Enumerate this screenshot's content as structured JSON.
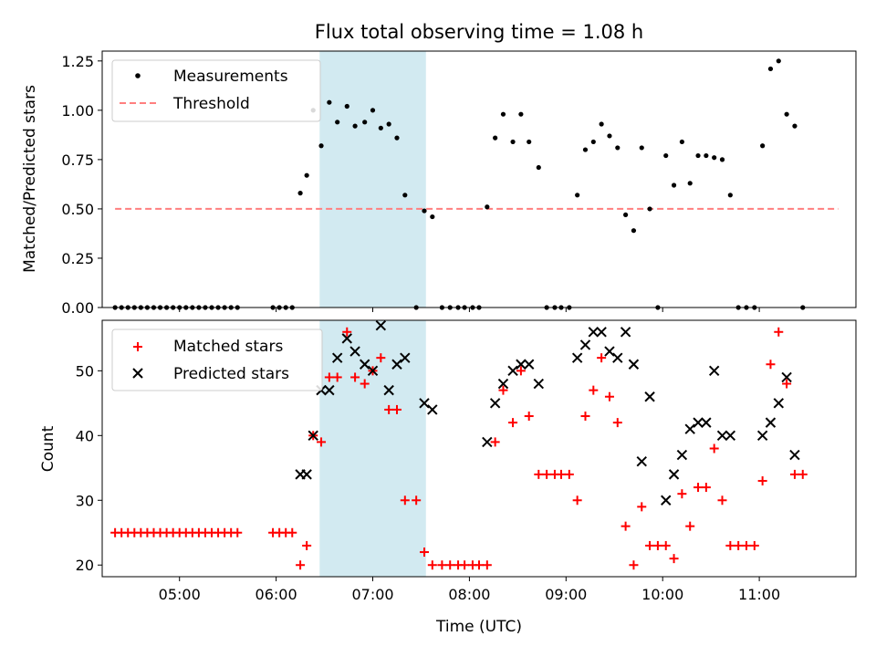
{
  "chart_data": {
    "type": "scatter",
    "title": "Flux total observing time = 1.08 h",
    "xlabel": "Time (UTC)",
    "xlim": [
      "04:12",
      "12:00"
    ],
    "x_ticks": [
      "05:00",
      "06:00",
      "07:00",
      "08:00",
      "09:00",
      "10:00",
      "11:00"
    ],
    "shaded_span": {
      "start": "06:27",
      "end": "07:33",
      "color": "#add8e6"
    },
    "panels": [
      {
        "id": "top",
        "ylabel": "Matched/Predicted stars",
        "ylim": [
          0,
          1.3
        ],
        "y_ticks": [
          "0.00",
          "0.25",
          "0.50",
          "0.75",
          "1.00",
          "1.25"
        ],
        "legend_position": "upper left",
        "threshold": {
          "name": "Threshold",
          "value": 0.5,
          "x_start": "04:20",
          "x_end": "11:49",
          "color": "#ff7f7f",
          "style": "dashed"
        },
        "series": [
          {
            "name": "Measurements",
            "marker": "dot",
            "color": "#000000",
            "points": [
              [
                "04:20",
                0
              ],
              [
                "04:24",
                0
              ],
              [
                "04:28",
                0
              ],
              [
                "04:32",
                0
              ],
              [
                "04:36",
                0
              ],
              [
                "04:40",
                0
              ],
              [
                "04:44",
                0
              ],
              [
                "04:48",
                0
              ],
              [
                "04:52",
                0
              ],
              [
                "04:56",
                0
              ],
              [
                "05:00",
                0
              ],
              [
                "05:04",
                0
              ],
              [
                "05:08",
                0
              ],
              [
                "05:12",
                0
              ],
              [
                "05:16",
                0
              ],
              [
                "05:20",
                0
              ],
              [
                "05:24",
                0
              ],
              [
                "05:28",
                0
              ],
              [
                "05:32",
                0
              ],
              [
                "05:36",
                0
              ],
              [
                "05:58",
                0
              ],
              [
                "06:02",
                0
              ],
              [
                "06:06",
                0
              ],
              [
                "06:10",
                0
              ],
              [
                "06:15",
                0.58
              ],
              [
                "06:19",
                0.67
              ],
              [
                "06:23",
                1.0
              ],
              [
                "06:28",
                0.82
              ],
              [
                "06:33",
                1.04
              ],
              [
                "06:38",
                0.94
              ],
              [
                "06:44",
                1.02
              ],
              [
                "06:49",
                0.92
              ],
              [
                "06:55",
                0.94
              ],
              [
                "07:00",
                1.0
              ],
              [
                "07:05",
                0.91
              ],
              [
                "07:10",
                0.93
              ],
              [
                "07:15",
                0.86
              ],
              [
                "07:20",
                0.57
              ],
              [
                "07:27",
                0.0
              ],
              [
                "07:32",
                0.49
              ],
              [
                "07:37",
                0.46
              ],
              [
                "07:43",
                0
              ],
              [
                "07:48",
                0
              ],
              [
                "07:53",
                0
              ],
              [
                "07:57",
                0
              ],
              [
                "08:02",
                0
              ],
              [
                "08:06",
                0
              ],
              [
                "08:11",
                0.51
              ],
              [
                "08:16",
                0.86
              ],
              [
                "08:21",
                0.98
              ],
              [
                "08:27",
                0.84
              ],
              [
                "08:32",
                0.98
              ],
              [
                "08:37",
                0.84
              ],
              [
                "08:43",
                0.71
              ],
              [
                "08:48",
                0
              ],
              [
                "08:53",
                0
              ],
              [
                "08:57",
                0
              ],
              [
                "09:02",
                0
              ],
              [
                "09:07",
                0.57
              ],
              [
                "09:12",
                0.8
              ],
              [
                "09:17",
                0.84
              ],
              [
                "09:22",
                0.93
              ],
              [
                "09:27",
                0.87
              ],
              [
                "09:32",
                0.81
              ],
              [
                "09:37",
                0.47
              ],
              [
                "09:42",
                0.39
              ],
              [
                "09:47",
                0.81
              ],
              [
                "09:52",
                0.5
              ],
              [
                "09:57",
                0.0
              ],
              [
                "10:02",
                0.77
              ],
              [
                "10:07",
                0.62
              ],
              [
                "10:12",
                0.84
              ],
              [
                "10:17",
                0.63
              ],
              [
                "10:22",
                0.77
              ],
              [
                "10:27",
                0.77
              ],
              [
                "10:32",
                0.76
              ],
              [
                "10:37",
                0.75
              ],
              [
                "10:42",
                0.57
              ],
              [
                "10:47",
                0
              ],
              [
                "10:52",
                0
              ],
              [
                "10:57",
                0
              ],
              [
                "11:02",
                0.82
              ],
              [
                "11:07",
                1.21
              ],
              [
                "11:12",
                1.25
              ],
              [
                "11:17",
                0.98
              ],
              [
                "11:22",
                0.92
              ],
              [
                "11:27",
                0.0
              ]
            ]
          }
        ]
      },
      {
        "id": "bottom",
        "ylabel": "Count",
        "ylim": [
          18.2,
          57.8
        ],
        "y_ticks": [
          "20",
          "30",
          "40",
          "50"
        ],
        "legend_position": "upper left",
        "series": [
          {
            "name": "Matched stars",
            "marker": "plus",
            "color": "#ff0000",
            "points": [
              [
                "04:20",
                25
              ],
              [
                "04:24",
                25
              ],
              [
                "04:28",
                25
              ],
              [
                "04:32",
                25
              ],
              [
                "04:36",
                25
              ],
              [
                "04:40",
                25
              ],
              [
                "04:44",
                25
              ],
              [
                "04:48",
                25
              ],
              [
                "04:52",
                25
              ],
              [
                "04:56",
                25
              ],
              [
                "05:00",
                25
              ],
              [
                "05:04",
                25
              ],
              [
                "05:08",
                25
              ],
              [
                "05:12",
                25
              ],
              [
                "05:16",
                25
              ],
              [
                "05:20",
                25
              ],
              [
                "05:24",
                25
              ],
              [
                "05:28",
                25
              ],
              [
                "05:32",
                25
              ],
              [
                "05:36",
                25
              ],
              [
                "05:58",
                25
              ],
              [
                "06:02",
                25
              ],
              [
                "06:06",
                25
              ],
              [
                "06:10",
                25
              ],
              [
                "06:15",
                20
              ],
              [
                "06:19",
                23
              ],
              [
                "06:23",
                40
              ],
              [
                "06:28",
                39
              ],
              [
                "06:33",
                49
              ],
              [
                "06:38",
                49
              ],
              [
                "06:44",
                56
              ],
              [
                "06:49",
                49
              ],
              [
                "06:55",
                48
              ],
              [
                "07:00",
                50
              ],
              [
                "07:05",
                52
              ],
              [
                "07:10",
                44
              ],
              [
                "07:15",
                44
              ],
              [
                "07:20",
                30
              ],
              [
                "07:27",
                30
              ],
              [
                "07:32",
                22
              ],
              [
                "07:37",
                20
              ],
              [
                "07:43",
                20
              ],
              [
                "07:48",
                20
              ],
              [
                "07:53",
                20
              ],
              [
                "07:57",
                20
              ],
              [
                "08:02",
                20
              ],
              [
                "08:06",
                20
              ],
              [
                "08:11",
                20
              ],
              [
                "08:16",
                39
              ],
              [
                "08:21",
                47
              ],
              [
                "08:27",
                42
              ],
              [
                "08:32",
                50
              ],
              [
                "08:37",
                43
              ],
              [
                "08:43",
                34
              ],
              [
                "08:48",
                34
              ],
              [
                "08:53",
                34
              ],
              [
                "08:57",
                34
              ],
              [
                "09:02",
                34
              ],
              [
                "09:07",
                30
              ],
              [
                "09:12",
                43
              ],
              [
                "09:17",
                47
              ],
              [
                "09:22",
                52
              ],
              [
                "09:27",
                46
              ],
              [
                "09:32",
                42
              ],
              [
                "09:37",
                26
              ],
              [
                "09:42",
                20
              ],
              [
                "09:47",
                29
              ],
              [
                "09:52",
                23
              ],
              [
                "09:57",
                23
              ],
              [
                "10:02",
                23
              ],
              [
                "10:07",
                21
              ],
              [
                "10:12",
                31
              ],
              [
                "10:17",
                26
              ],
              [
                "10:22",
                32
              ],
              [
                "10:27",
                32
              ],
              [
                "10:32",
                38
              ],
              [
                "10:37",
                30
              ],
              [
                "10:42",
                23
              ],
              [
                "10:47",
                23
              ],
              [
                "10:52",
                23
              ],
              [
                "10:57",
                23
              ],
              [
                "11:02",
                33
              ],
              [
                "11:07",
                51
              ],
              [
                "11:12",
                56
              ],
              [
                "11:17",
                48
              ],
              [
                "11:22",
                34
              ],
              [
                "11:27",
                34
              ]
            ]
          },
          {
            "name": "Predicted stars",
            "marker": "x",
            "color": "#000000",
            "points": [
              [
                "06:15",
                34
              ],
              [
                "06:19",
                34
              ],
              [
                "06:23",
                40
              ],
              [
                "06:28",
                47
              ],
              [
                "06:33",
                47
              ],
              [
                "06:38",
                52
              ],
              [
                "06:44",
                55
              ],
              [
                "06:49",
                53
              ],
              [
                "06:55",
                51
              ],
              [
                "07:00",
                50
              ],
              [
                "07:05",
                57
              ],
              [
                "07:10",
                47
              ],
              [
                "07:15",
                51
              ],
              [
                "07:20",
                52
              ],
              [
                "07:32",
                45
              ],
              [
                "07:37",
                44
              ],
              [
                "08:11",
                39
              ],
              [
                "08:16",
                45
              ],
              [
                "08:21",
                48
              ],
              [
                "08:27",
                50
              ],
              [
                "08:32",
                51
              ],
              [
                "08:37",
                51
              ],
              [
                "08:43",
                48
              ],
              [
                "09:07",
                52
              ],
              [
                "09:12",
                54
              ],
              [
                "09:17",
                56
              ],
              [
                "09:22",
                56
              ],
              [
                "09:27",
                53
              ],
              [
                "09:32",
                52
              ],
              [
                "09:37",
                56
              ],
              [
                "09:42",
                51
              ],
              [
                "09:47",
                36
              ],
              [
                "09:52",
                46
              ],
              [
                "10:02",
                30
              ],
              [
                "10:07",
                34
              ],
              [
                "10:12",
                37
              ],
              [
                "10:17",
                41
              ],
              [
                "10:22",
                42
              ],
              [
                "10:27",
                42
              ],
              [
                "10:32",
                50
              ],
              [
                "10:37",
                40
              ],
              [
                "10:42",
                40
              ],
              [
                "11:02",
                40
              ],
              [
                "11:07",
                42
              ],
              [
                "11:12",
                45
              ],
              [
                "11:17",
                49
              ],
              [
                "11:22",
                37
              ]
            ]
          }
        ]
      }
    ]
  }
}
